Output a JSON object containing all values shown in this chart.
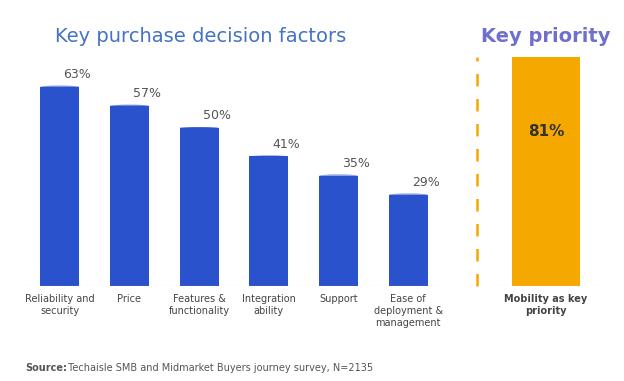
{
  "title_left": "Key purchase decision factors",
  "title_right": "Key priority",
  "categories": [
    "Reliability and\nsecurity",
    "Price",
    "Features &\nfunctionality",
    "Integration\nability",
    "Support",
    "Ease of\ndeployment &\nmanagement"
  ],
  "values": [
    63,
    57,
    50,
    41,
    35,
    29
  ],
  "bar_color": "#2952cc",
  "priority_label": "Mobility as key\npriority",
  "priority_value": 81,
  "priority_bar_color": "#f5a800",
  "priority_cap_color": "#5b7ed6",
  "dashed_line_color": "#f5a800",
  "title_color": "#4472c4",
  "title_right_color": "#7070cc",
  "source_bold": "Source:",
  "source_text": " Techaisle SMB and Midmarket Buyers journey survey, N=2135",
  "background_color": "#ffffff",
  "label_fontsize": 9,
  "title_fontsize": 14,
  "value_label_color": "#555555",
  "axis_line_color": "#cccccc",
  "cat_label_color": "#444444"
}
